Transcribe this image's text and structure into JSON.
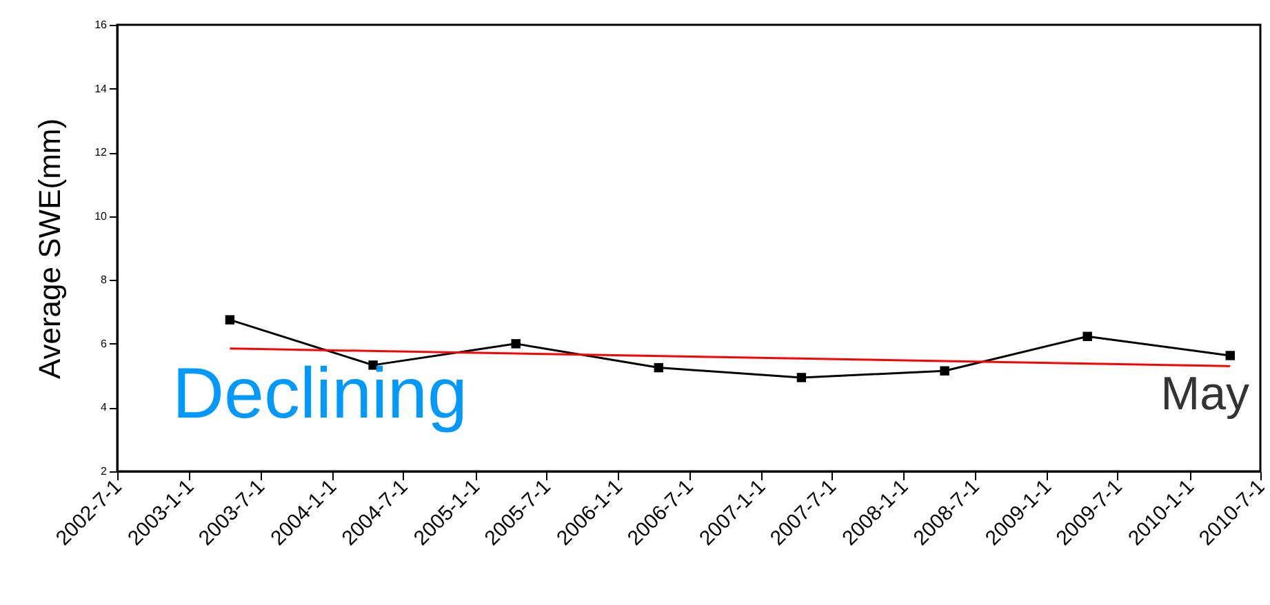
{
  "chart_data": {
    "type": "line",
    "ylabel": "Average SWE(mm)",
    "xlim": [
      "2002-07-01",
      "2010-07-01"
    ],
    "xticks": [
      {
        "value": "2002-07-01",
        "label": "2002-7-1"
      },
      {
        "value": "2003-01-01",
        "label": "2003-1-1"
      },
      {
        "value": "2003-07-01",
        "label": "2003-7-1"
      },
      {
        "value": "2004-01-01",
        "label": "2004-1-1"
      },
      {
        "value": "2004-07-01",
        "label": "2004-7-1"
      },
      {
        "value": "2005-01-01",
        "label": "2005-1-1"
      },
      {
        "value": "2005-07-01",
        "label": "2005-7-1"
      },
      {
        "value": "2006-01-01",
        "label": "2006-1-1"
      },
      {
        "value": "2006-07-01",
        "label": "2006-7-1"
      },
      {
        "value": "2007-01-01",
        "label": "2007-1-1"
      },
      {
        "value": "2007-07-01",
        "label": "2007-7-1"
      },
      {
        "value": "2008-01-01",
        "label": "2008-1-1"
      },
      {
        "value": "2008-07-01",
        "label": "2008-7-1"
      },
      {
        "value": "2009-01-01",
        "label": "2009-1-1"
      },
      {
        "value": "2009-07-01",
        "label": "2009-7-1"
      },
      {
        "value": "2010-01-01",
        "label": "2010-1-1"
      },
      {
        "value": "2010-07-01",
        "label": "2010-7-1"
      }
    ],
    "ylim": [
      2,
      16
    ],
    "yticks": [
      2,
      4,
      6,
      8,
      10,
      12,
      14,
      16
    ],
    "x": [
      "2003-04-15",
      "2004-04-15",
      "2005-04-15",
      "2006-04-15",
      "2007-04-15",
      "2008-04-15",
      "2009-04-15",
      "2010-04-15"
    ],
    "series": [
      {
        "color": "#000000",
        "marker": "square",
        "values": [
          6.75,
          5.33,
          6.0,
          5.25,
          4.94,
          5.15,
          6.23,
          5.63
        ]
      },
      {
        "color": "#ff0000",
        "marker": "none",
        "x": [
          "2003-04-15",
          "2010-04-15"
        ],
        "values": [
          5.85,
          5.3
        ]
      }
    ],
    "line_style": "solid",
    "grid": false,
    "annotations": [
      "Declining",
      "May"
    ]
  }
}
